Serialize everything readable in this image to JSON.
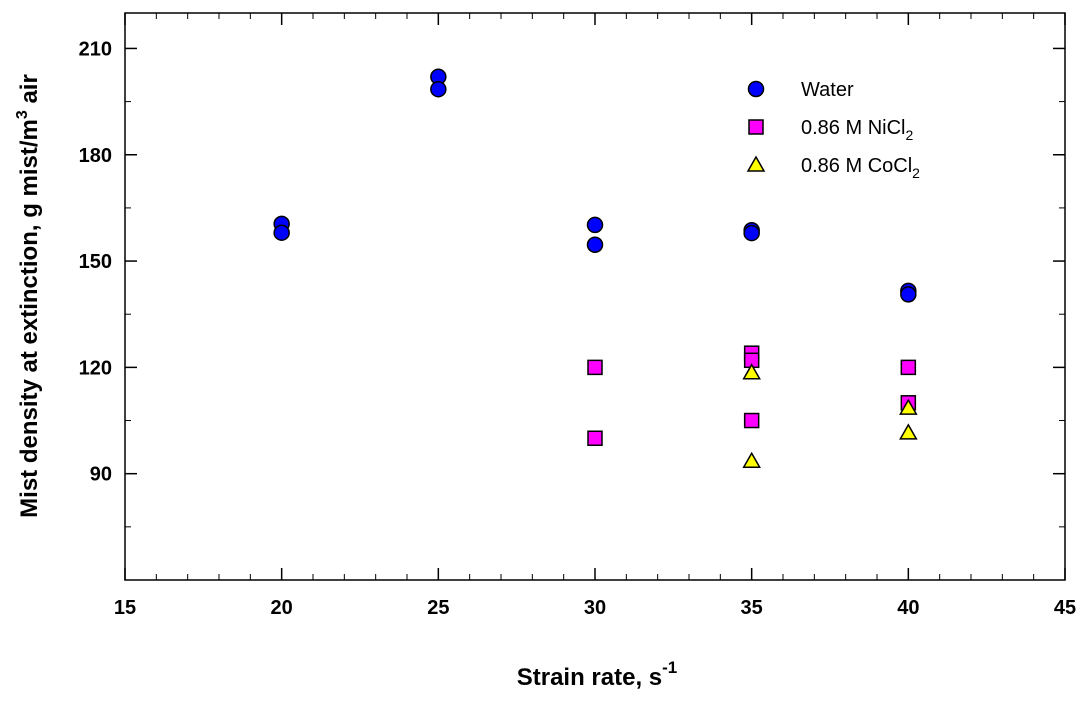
{
  "chart_data": {
    "type": "scatter",
    "title": "",
    "xlabel": "Strain rate, s",
    "xlabel_superscript": "-1",
    "ylabel": "Mist density at extinction, g mist/m",
    "ylabel_superscript": "3",
    "ylabel_suffix": " air",
    "xlim": [
      15,
      45
    ],
    "ylim": [
      60,
      220
    ],
    "x_ticks": [
      15,
      20,
      25,
      30,
      35,
      40,
      45
    ],
    "x_tick_labels": [
      "15",
      "20",
      "25",
      "30",
      "35",
      "40",
      "45"
    ],
    "x_minor_step": 1,
    "y_ticks": [
      90,
      120,
      150,
      180,
      210
    ],
    "y_tick_labels": [
      "90",
      "120",
      "150",
      "180",
      "210"
    ],
    "y_minor_step": 15,
    "grid": false,
    "legend_position": "top-right",
    "series": [
      {
        "name": "Water",
        "legend_label": "Water",
        "legend_sub": "",
        "marker": "circle",
        "color": "#0000ff",
        "points": [
          [
            20,
            160.5
          ],
          [
            20,
            158
          ],
          [
            25,
            202
          ],
          [
            25,
            198.5
          ],
          [
            30,
            160.2
          ],
          [
            30,
            154.6
          ],
          [
            35,
            158.7
          ],
          [
            35,
            157.9
          ],
          [
            40,
            141.6
          ],
          [
            40,
            140.6
          ]
        ]
      },
      {
        "name": "0.86 M NiCl2",
        "legend_label": "0.86 M NiCl",
        "legend_sub": "2",
        "marker": "square",
        "color": "#ff00ff",
        "points": [
          [
            30,
            120
          ],
          [
            30,
            100
          ],
          [
            35,
            124
          ],
          [
            35,
            122
          ],
          [
            35,
            105
          ],
          [
            40,
            120
          ],
          [
            40,
            110
          ]
        ]
      },
      {
        "name": "0.86 M CoCl2",
        "legend_label": "0.86 M CoCl",
        "legend_sub": "2",
        "marker": "triangle",
        "color": "#ffff00",
        "points": [
          [
            35,
            118.5
          ],
          [
            35,
            93.5
          ],
          [
            40,
            108.5
          ],
          [
            40,
            101.5
          ]
        ]
      }
    ]
  }
}
